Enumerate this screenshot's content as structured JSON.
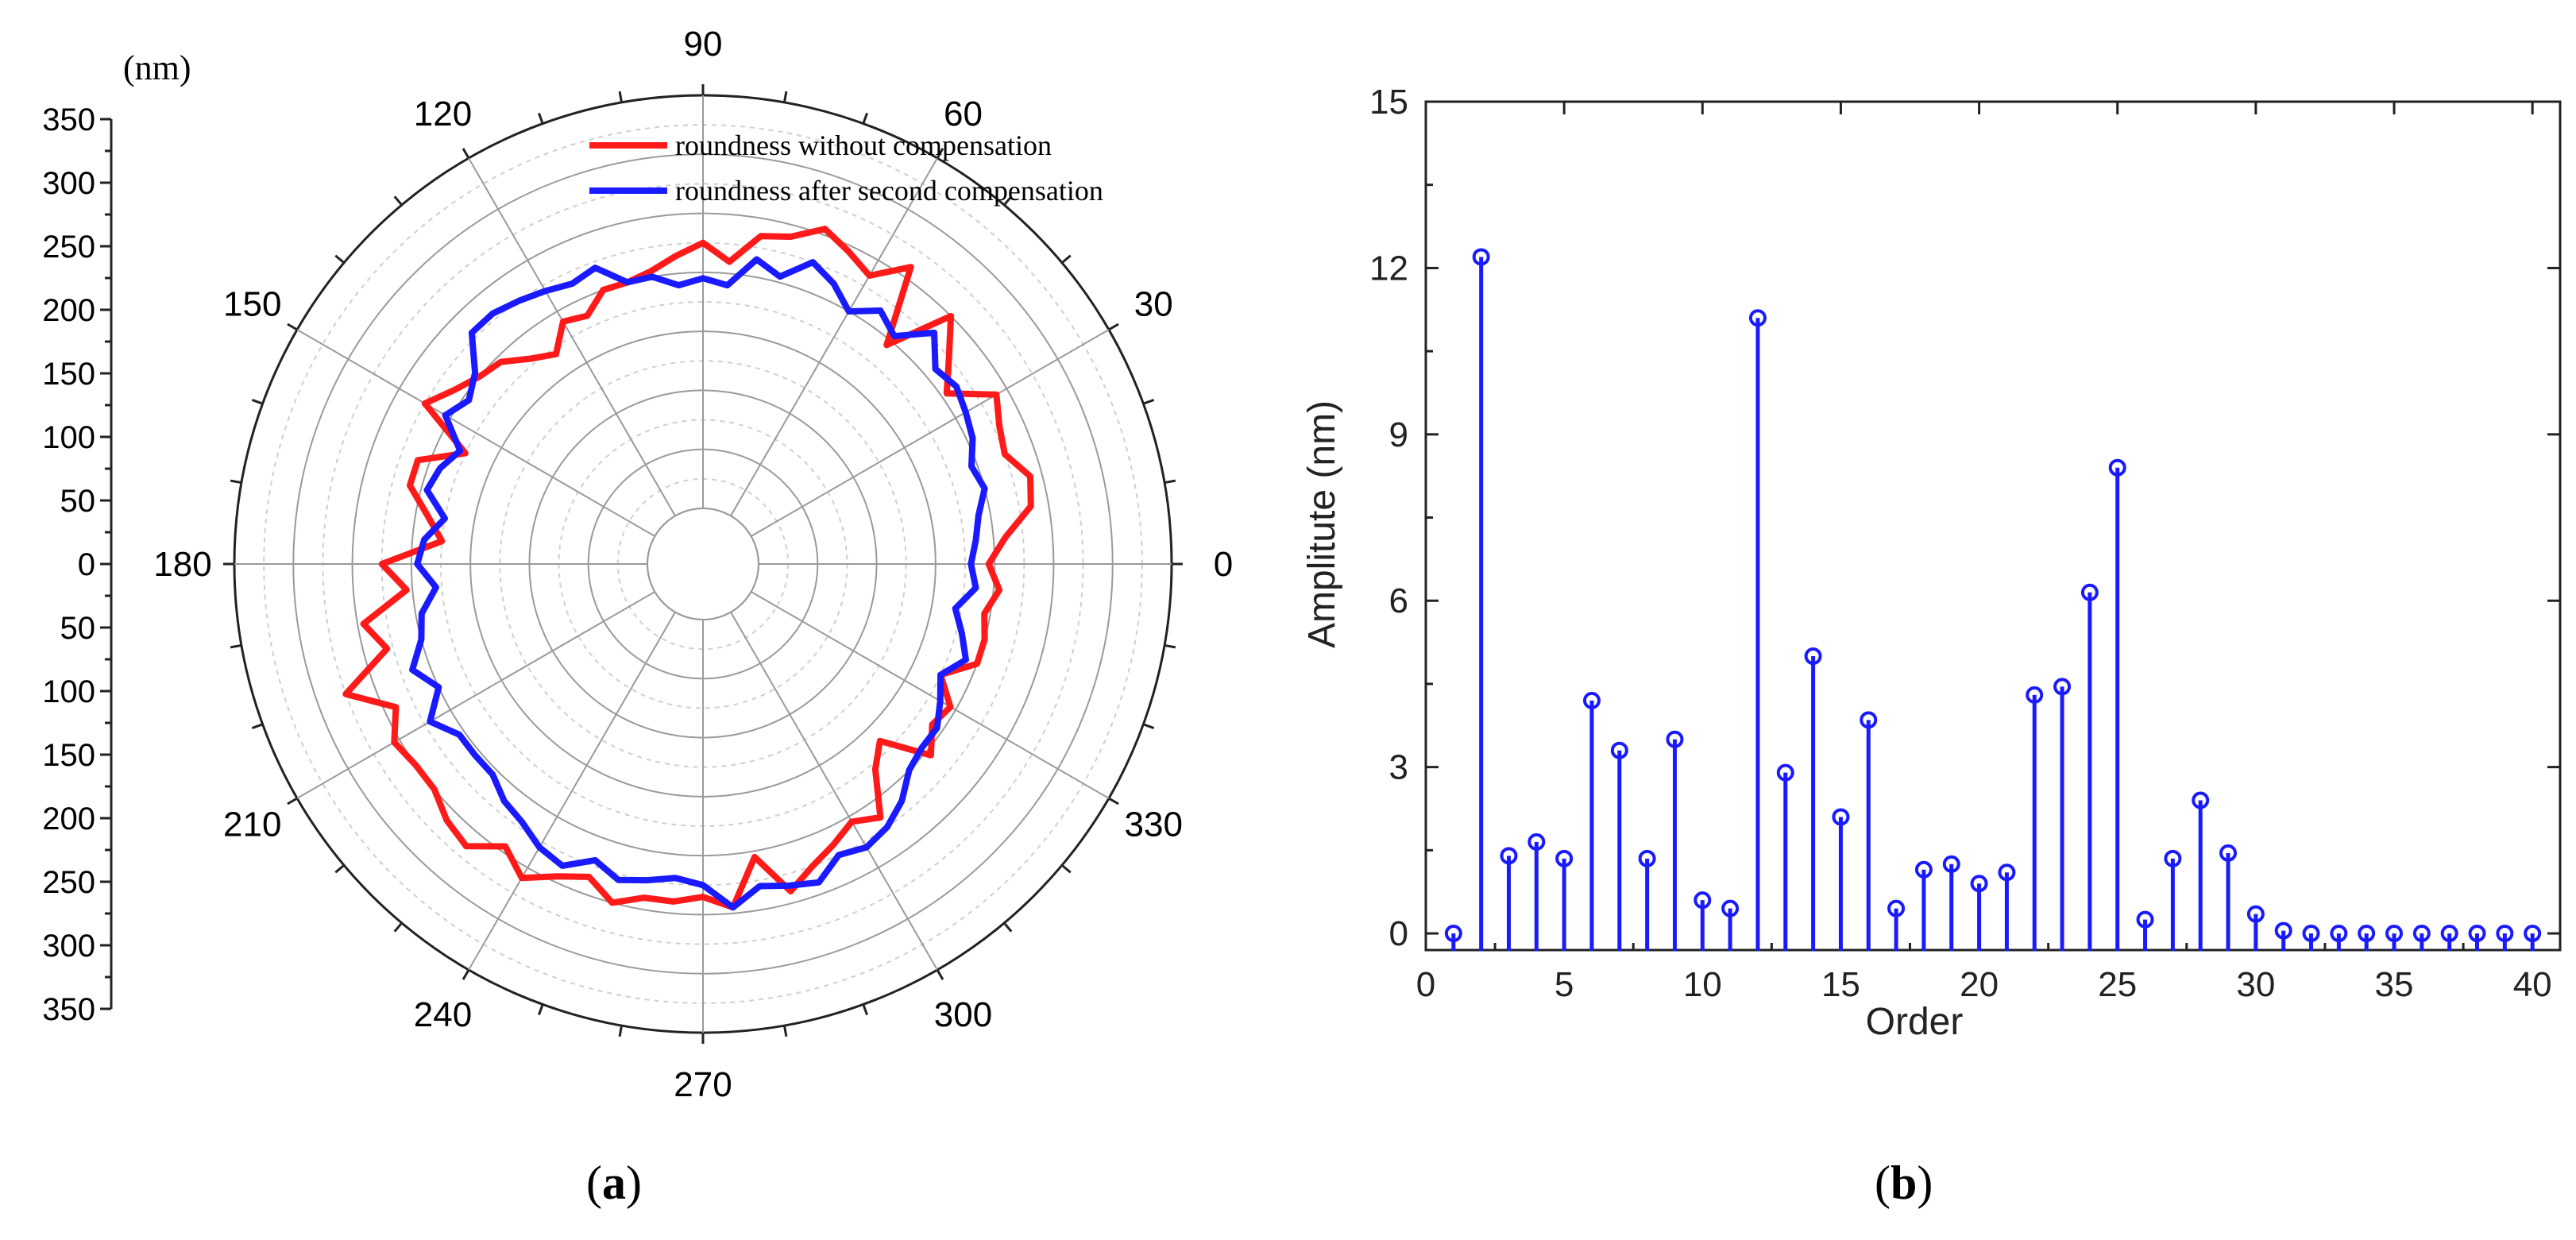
{
  "captions": {
    "a_open": "(",
    "a_letter": "a",
    "a_close": ")",
    "b_open": "(",
    "b_letter": "b",
    "b_close": ")"
  },
  "chart_data": [
    {
      "type": "polar-line",
      "radial_unit": "(nm)",
      "radial_scale_ticks": [
        350,
        300,
        250,
        200,
        150,
        100,
        50,
        0,
        50,
        100,
        150,
        200,
        250,
        300,
        350
      ],
      "angle_ticks": [
        0,
        30,
        60,
        90,
        120,
        150,
        180,
        210,
        240,
        270,
        300,
        330
      ],
      "legend": [
        "roundness without compensation",
        "roundness after second compensation"
      ],
      "colors": {
        "without": "#ff1a1a",
        "after": "#1a1aff"
      },
      "series": [
        {
          "name": "roundness without compensation",
          "angles": [
            0,
            5,
            10,
            15,
            20,
            25,
            30,
            35,
            40,
            45,
            50,
            55,
            60,
            65,
            70,
            75,
            80,
            85,
            90,
            95,
            100,
            105,
            110,
            115,
            120,
            125,
            130,
            135,
            140,
            145,
            150,
            155,
            160,
            165,
            170,
            175,
            180,
            185,
            190,
            195,
            200,
            205,
            210,
            215,
            220,
            225,
            230,
            235,
            240,
            245,
            250,
            255,
            260,
            265,
            270,
            275,
            280,
            285,
            290,
            295,
            300,
            305,
            310,
            315,
            320,
            325,
            330,
            335,
            340,
            345,
            350,
            355
          ],
          "radii": [
            195,
            210,
            235,
            240,
            225,
            230,
            240,
            205,
            225,
            250,
            195,
            260,
            235,
            245,
            255,
            240,
            235,
            210,
            225,
            215,
            205,
            200,
            200,
            185,
            190,
            170,
            180,
            195,
            200,
            210,
            225,
            175,
            210,
            210,
            190,
            175,
            225,
            205,
            245,
            230,
            275,
            240,
            255,
            250,
            250,
            260,
            265,
            245,
            260,
            245,
            235,
            250,
            240,
            240,
            235,
            245,
            205,
            240,
            225,
            215,
            205,
            215,
            180,
            165,
            205,
            190,
            195,
            175,
            200,
            200,
            195,
            205
          ]
        },
        {
          "name": "roundness after second compensation",
          "angles": [
            0,
            5,
            10,
            15,
            20,
            25,
            30,
            35,
            40,
            45,
            50,
            55,
            60,
            65,
            70,
            75,
            80,
            85,
            90,
            95,
            100,
            105,
            110,
            115,
            120,
            125,
            130,
            135,
            140,
            145,
            150,
            155,
            160,
            165,
            170,
            175,
            180,
            185,
            190,
            195,
            200,
            205,
            210,
            215,
            220,
            225,
            230,
            235,
            240,
            245,
            250,
            255,
            260,
            265,
            270,
            275,
            280,
            285,
            290,
            295,
            300,
            305,
            310,
            315,
            320,
            325,
            330,
            335,
            340,
            345,
            350,
            355
          ],
          "radii": [
            180,
            185,
            190,
            200,
            195,
            205,
            210,
            215,
            210,
            230,
            205,
            215,
            200,
            215,
            225,
            205,
            215,
            190,
            195,
            190,
            200,
            200,
            220,
            215,
            220,
            225,
            230,
            230,
            205,
            195,
            205,
            180,
            190,
            195,
            175,
            190,
            195,
            180,
            195,
            200,
            215,
            200,
            220,
            205,
            205,
            205,
            215,
            220,
            230,
            235,
            220,
            230,
            225,
            220,
            225,
            245,
            230,
            235,
            240,
            225,
            230,
            225,
            215,
            200,
            195,
            195,
            185,
            175,
            190,
            180,
            170,
            185
          ]
        }
      ]
    },
    {
      "type": "stem",
      "title": "",
      "xlabel": "Order",
      "ylabel": "Amplitute (nm)",
      "xlim": [
        0,
        41
      ],
      "ylim": [
        -0.3,
        15
      ],
      "xticks": [
        0,
        5,
        10,
        15,
        20,
        25,
        30,
        35,
        40
      ],
      "yticks": [
        0,
        3,
        6,
        9,
        12,
        15
      ],
      "color": "#1a1aff",
      "x": [
        1,
        2,
        3,
        4,
        5,
        6,
        7,
        8,
        9,
        10,
        11,
        12,
        13,
        14,
        15,
        16,
        17,
        18,
        19,
        20,
        21,
        22,
        23,
        24,
        25,
        26,
        27,
        28,
        29,
        30,
        31,
        32,
        33,
        34,
        35,
        36,
        37,
        38,
        39,
        40
      ],
      "values": [
        0,
        12.2,
        1.4,
        1.65,
        1.35,
        4.2,
        3.3,
        1.35,
        3.5,
        0.6,
        0.45,
        11.1,
        2.9,
        5.0,
        2.1,
        3.85,
        0.45,
        1.15,
        1.25,
        0.9,
        1.1,
        4.3,
        4.45,
        6.15,
        8.4,
        0.25,
        1.35,
        2.4,
        1.45,
        0.35,
        0.05,
        0.0,
        0.0,
        0.0,
        0.0,
        0.0,
        0.0,
        0.0,
        0.0,
        0.0
      ]
    }
  ]
}
